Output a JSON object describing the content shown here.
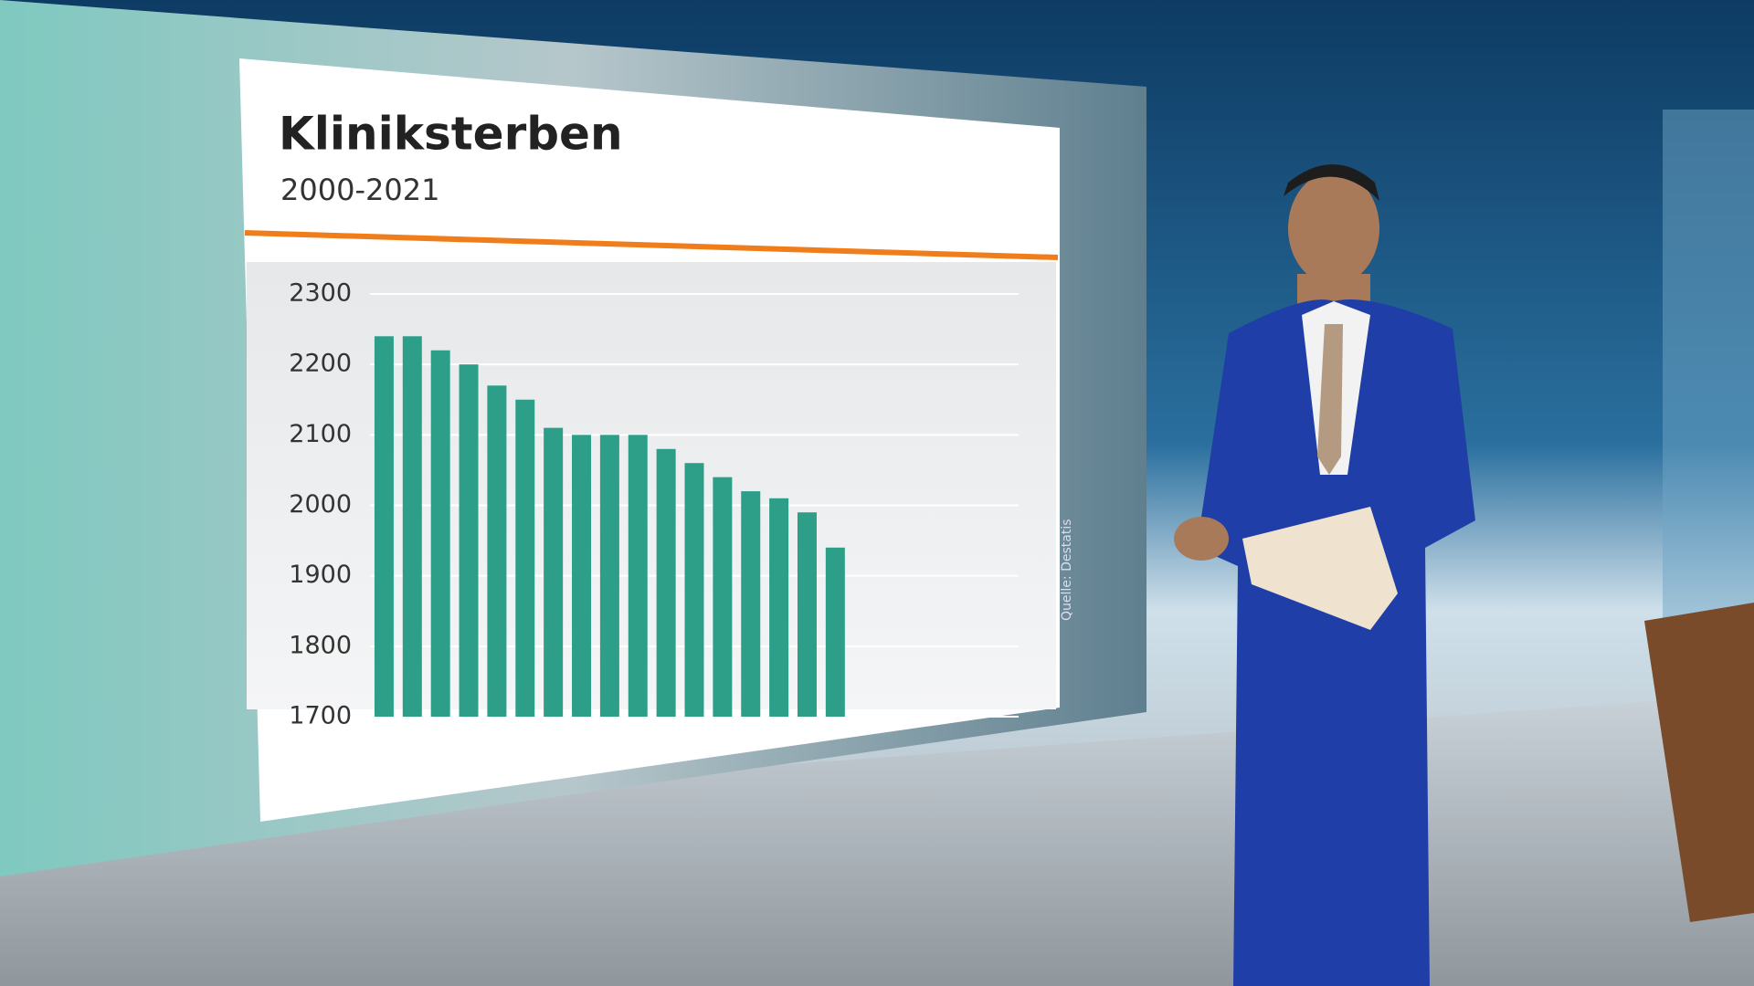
{
  "chart_data": {
    "type": "bar",
    "title": "Kliniksterben",
    "subtitle": "2000-2021",
    "source": "Quelle: Destatis",
    "values": [
      2240,
      2240,
      2220,
      2200,
      2170,
      2150,
      2110,
      2100,
      2100,
      2100,
      2080,
      2060,
      2040,
      2020,
      2010,
      1990,
      1940
    ],
    "color": "#2d9f89",
    "ylim": [
      1700,
      2300
    ],
    "yticks": [
      1700,
      1800,
      1900,
      2000,
      2100,
      2200,
      2300
    ],
    "grid": true
  }
}
